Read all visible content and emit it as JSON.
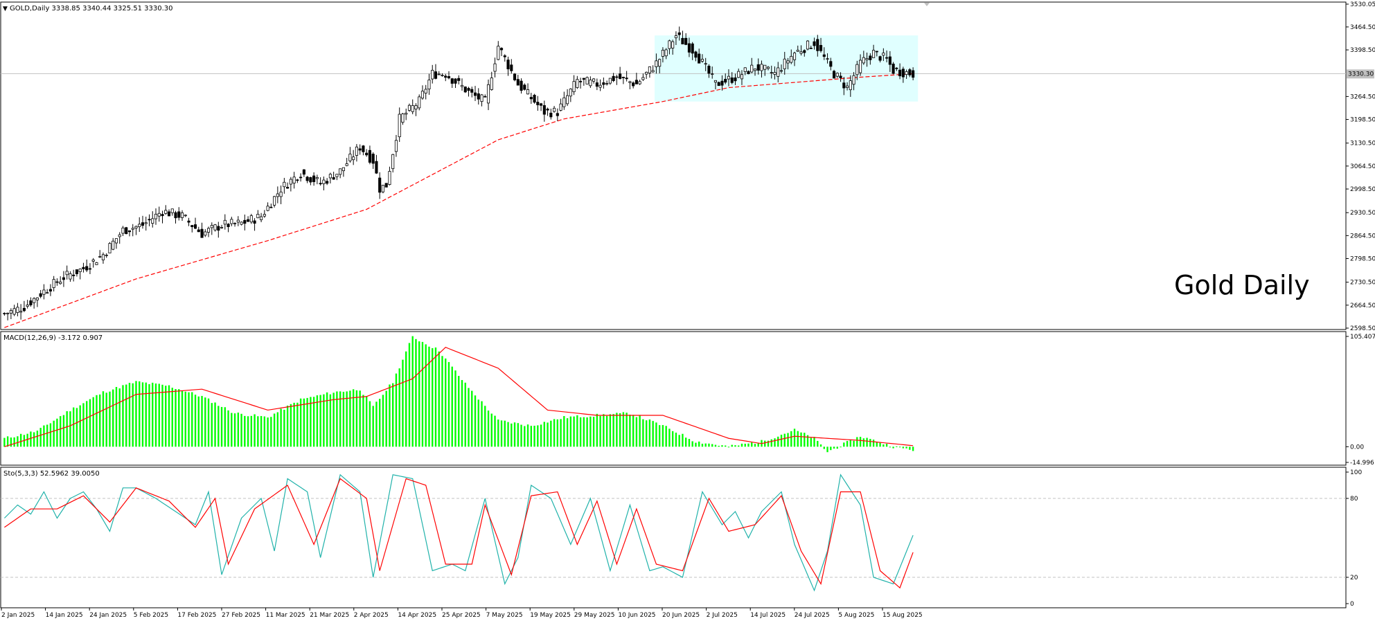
{
  "colors": {
    "background": "#ffffff",
    "frame": "#000000",
    "candle": "#000000",
    "ma": "#ff0000",
    "range_box": "#e0ffff",
    "macd_hist": "#00ff00",
    "macd_signal": "#ff0000",
    "stoch_main": "#20b2aa",
    "stoch_signal": "#ff0000",
    "grid_dash": "#c0c0c0",
    "current_price_line": "#c0c0c0"
  },
  "price_panel": {
    "header": "GOLD,Daily  3338.85 3340.44 3325.51 3330.30",
    "watermark": "Gold Daily",
    "current_price": "3330.30"
  },
  "macd_panel": {
    "header": "MACD(12,26,9) -3.172 0.907"
  },
  "stoch_panel": {
    "header": "Sto(5,3,3) 52.5962 39.0050"
  },
  "chart_data": [
    {
      "type": "candlestick",
      "title": "GOLD,Daily",
      "ohlc_last": {
        "open": 3338.85,
        "high": 3340.44,
        "low": 3325.51,
        "close": 3330.3
      },
      "ylim": [
        2598.5,
        3530.0
      ],
      "y_ticks": [
        "3530.05",
        "3464.50",
        "3398.50",
        "3330.30",
        "3264.50",
        "3198.50",
        "3130.50",
        "3064.50",
        "2998.50",
        "2930.50",
        "2864.50",
        "2798.50",
        "2730.50",
        "2664.50",
        "2598.50"
      ],
      "x_ticks": [
        "2 Jan 2025",
        "14 Jan 2025",
        "24 Jan 2025",
        "5 Feb 2025",
        "17 Feb 2025",
        "27 Feb 2025",
        "11 Mar 2025",
        "21 Mar 2025",
        "2 Apr 2025",
        "14 Apr 2025",
        "25 Apr 2025",
        "7 May 2025",
        "19 May 2025",
        "29 May 2025",
        "10 Jun 2025",
        "20 Jun 2025",
        "2 Jul 2025",
        "14 Jul 2025",
        "24 Jul 2025",
        "5 Aug 2025",
        "15 Aug 2025"
      ],
      "close_anchors": [
        [
          0,
          2640
        ],
        [
          6,
          2660
        ],
        [
          12,
          2705
        ],
        [
          18,
          2745
        ],
        [
          24,
          2770
        ],
        [
          30,
          2810
        ],
        [
          36,
          2880
        ],
        [
          42,
          2895
        ],
        [
          48,
          2935
        ],
        [
          54,
          2920
        ],
        [
          60,
          2870
        ],
        [
          66,
          2895
        ],
        [
          72,
          2900
        ],
        [
          78,
          2920
        ],
        [
          84,
          3000
        ],
        [
          90,
          3045
        ],
        [
          96,
          3015
        ],
        [
          102,
          3050
        ],
        [
          108,
          3120
        ],
        [
          112,
          3080
        ],
        [
          114,
          3000
        ],
        [
          116,
          3010
        ],
        [
          120,
          3200
        ],
        [
          126,
          3250
        ],
        [
          130,
          3330
        ],
        [
          134,
          3330
        ],
        [
          138,
          3300
        ],
        [
          142,
          3270
        ],
        [
          146,
          3250
        ],
        [
          150,
          3410
        ],
        [
          156,
          3300
        ],
        [
          160,
          3260
        ],
        [
          164,
          3220
        ],
        [
          168,
          3220
        ],
        [
          174,
          3310
        ],
        [
          180,
          3300
        ],
        [
          186,
          3320
        ],
        [
          192,
          3300
        ],
        [
          198,
          3360
        ],
        [
          204,
          3440
        ],
        [
          210,
          3390
        ],
        [
          216,
          3300
        ],
        [
          222,
          3320
        ],
        [
          228,
          3350
        ],
        [
          234,
          3330
        ],
        [
          240,
          3390
        ],
        [
          246,
          3420
        ],
        [
          252,
          3330
        ],
        [
          256,
          3290
        ],
        [
          260,
          3360
        ],
        [
          264,
          3390
        ],
        [
          268,
          3370
        ],
        [
          270,
          3340
        ],
        [
          276,
          3330
        ]
      ],
      "ma_anchors": [
        [
          0,
          2600
        ],
        [
          40,
          2740
        ],
        [
          80,
          2850
        ],
        [
          110,
          2940
        ],
        [
          130,
          3040
        ],
        [
          150,
          3140
        ],
        [
          170,
          3200
        ],
        [
          200,
          3250
        ],
        [
          220,
          3290
        ],
        [
          260,
          3320
        ],
        [
          276,
          3330
        ]
      ],
      "consolidation_range": {
        "start_index": 198,
        "end_index": 278,
        "high": 3440,
        "low": 3250
      }
    },
    {
      "type": "macd",
      "title": "MACD(12,26,9)",
      "values_last": {
        "macd": -3.172,
        "signal": 0.907
      },
      "ylim": [
        -14.996,
        105.407
      ],
      "y_ticks": [
        "105.407",
        "0.00",
        "-14.996"
      ],
      "hist_anchors": [
        [
          0,
          8
        ],
        [
          10,
          15
        ],
        [
          20,
          35
        ],
        [
          30,
          52
        ],
        [
          40,
          62
        ],
        [
          50,
          58
        ],
        [
          60,
          48
        ],
        [
          70,
          32
        ],
        [
          80,
          28
        ],
        [
          90,
          45
        ],
        [
          100,
          52
        ],
        [
          108,
          55
        ],
        [
          112,
          38
        ],
        [
          118,
          62
        ],
        [
          124,
          105
        ],
        [
          132,
          92
        ],
        [
          140,
          60
        ],
        [
          150,
          25
        ],
        [
          160,
          20
        ],
        [
          170,
          28
        ],
        [
          180,
          30
        ],
        [
          190,
          32
        ],
        [
          200,
          20
        ],
        [
          210,
          5
        ],
        [
          220,
          0
        ],
        [
          230,
          5
        ],
        [
          240,
          16
        ],
        [
          246,
          8
        ],
        [
          250,
          -5
        ],
        [
          260,
          10
        ],
        [
          270,
          0
        ],
        [
          276,
          -3
        ]
      ],
      "signal_anchors": [
        [
          0,
          0
        ],
        [
          20,
          20
        ],
        [
          40,
          50
        ],
        [
          60,
          55
        ],
        [
          80,
          35
        ],
        [
          100,
          45
        ],
        [
          110,
          48
        ],
        [
          124,
          65
        ],
        [
          134,
          95
        ],
        [
          150,
          75
        ],
        [
          165,
          35
        ],
        [
          180,
          30
        ],
        [
          200,
          30
        ],
        [
          220,
          8
        ],
        [
          230,
          3
        ],
        [
          240,
          10
        ],
        [
          260,
          6
        ],
        [
          276,
          1
        ]
      ]
    },
    {
      "type": "stochastic",
      "title": "Sto(5,3,3)",
      "values_last": {
        "main": 52.5962,
        "signal": 39.005
      },
      "ylim": [
        0,
        100
      ],
      "y_ticks": [
        "100",
        "80",
        "20",
        "0"
      ],
      "levels": [
        80,
        20
      ],
      "main_anchors": [
        [
          0,
          65
        ],
        [
          4,
          75
        ],
        [
          8,
          68
        ],
        [
          12,
          85
        ],
        [
          16,
          65
        ],
        [
          20,
          80
        ],
        [
          24,
          85
        ],
        [
          28,
          72
        ],
        [
          32,
          55
        ],
        [
          36,
          88
        ],
        [
          40,
          88
        ],
        [
          46,
          80
        ],
        [
          52,
          70
        ],
        [
          58,
          60
        ],
        [
          62,
          85
        ],
        [
          66,
          22
        ],
        [
          72,
          65
        ],
        [
          78,
          80
        ],
        [
          82,
          40
        ],
        [
          86,
          95
        ],
        [
          92,
          85
        ],
        [
          96,
          35
        ],
        [
          102,
          98
        ],
        [
          108,
          85
        ],
        [
          112,
          20
        ],
        [
          118,
          98
        ],
        [
          124,
          95
        ],
        [
          130,
          25
        ],
        [
          136,
          30
        ],
        [
          140,
          25
        ],
        [
          146,
          80
        ],
        [
          152,
          15
        ],
        [
          156,
          35
        ],
        [
          160,
          90
        ],
        [
          166,
          80
        ],
        [
          172,
          45
        ],
        [
          178,
          80
        ],
        [
          184,
          25
        ],
        [
          190,
          75
        ],
        [
          196,
          25
        ],
        [
          200,
          28
        ],
        [
          206,
          20
        ],
        [
          212,
          85
        ],
        [
          218,
          60
        ],
        [
          222,
          70
        ],
        [
          226,
          50
        ],
        [
          230,
          70
        ],
        [
          236,
          85
        ],
        [
          240,
          45
        ],
        [
          246,
          10
        ],
        [
          250,
          40
        ],
        [
          254,
          98
        ],
        [
          260,
          75
        ],
        [
          264,
          20
        ],
        [
          270,
          15
        ],
        [
          276,
          52
        ]
      ],
      "signal_anchors": [
        [
          0,
          58
        ],
        [
          8,
          72
        ],
        [
          16,
          72
        ],
        [
          24,
          82
        ],
        [
          32,
          62
        ],
        [
          40,
          88
        ],
        [
          50,
          78
        ],
        [
          58,
          58
        ],
        [
          64,
          80
        ],
        [
          68,
          30
        ],
        [
          76,
          72
        ],
        [
          86,
          90
        ],
        [
          94,
          45
        ],
        [
          102,
          95
        ],
        [
          110,
          80
        ],
        [
          114,
          25
        ],
        [
          122,
          95
        ],
        [
          128,
          90
        ],
        [
          134,
          30
        ],
        [
          142,
          30
        ],
        [
          146,
          75
        ],
        [
          154,
          22
        ],
        [
          160,
          82
        ],
        [
          168,
          85
        ],
        [
          174,
          45
        ],
        [
          180,
          78
        ],
        [
          186,
          30
        ],
        [
          192,
          72
        ],
        [
          198,
          30
        ],
        [
          206,
          25
        ],
        [
          214,
          80
        ],
        [
          220,
          55
        ],
        [
          228,
          60
        ],
        [
          236,
          82
        ],
        [
          242,
          40
        ],
        [
          248,
          15
        ],
        [
          254,
          85
        ],
        [
          260,
          85
        ],
        [
          266,
          25
        ],
        [
          272,
          12
        ],
        [
          276,
          39
        ]
      ]
    }
  ]
}
